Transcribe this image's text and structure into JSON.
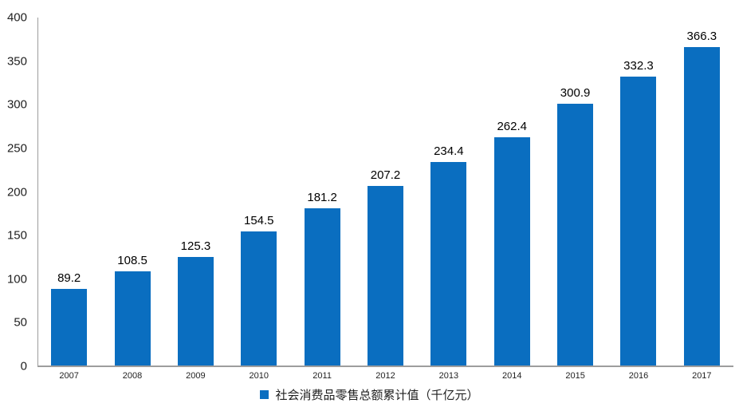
{
  "chart_data": {
    "type": "bar",
    "title": "",
    "categories": [
      "2007",
      "2008",
      "2009",
      "2010",
      "2011",
      "2012",
      "2013",
      "2014",
      "2015",
      "2016",
      "2017"
    ],
    "values": [
      89.2,
      108.5,
      125.3,
      154.5,
      181.2,
      207.2,
      234.4,
      262.4,
      300.9,
      332.3,
      366.3
    ],
    "data_labels": [
      "89.2",
      "108.5",
      "125.3",
      "154.5",
      "181.2",
      "207.2",
      "234.4",
      "262.4",
      "300.9",
      "332.3",
      "366.3"
    ],
    "legend": "社会消费品零售总额累计值（千亿元）",
    "legend_position": "bottom-center",
    "xlabel": "",
    "ylabel": "",
    "ylim": [
      0,
      400
    ],
    "yticks": [
      "0",
      "50",
      "100",
      "150",
      "200",
      "250",
      "300",
      "350",
      "400"
    ],
    "grid": false,
    "colors": {
      "bar": "#0a6ec0",
      "axis": "#9d9d9d",
      "data_label": "#000000",
      "tick_label": "#1f1f1f",
      "background": "#ffffff"
    }
  }
}
